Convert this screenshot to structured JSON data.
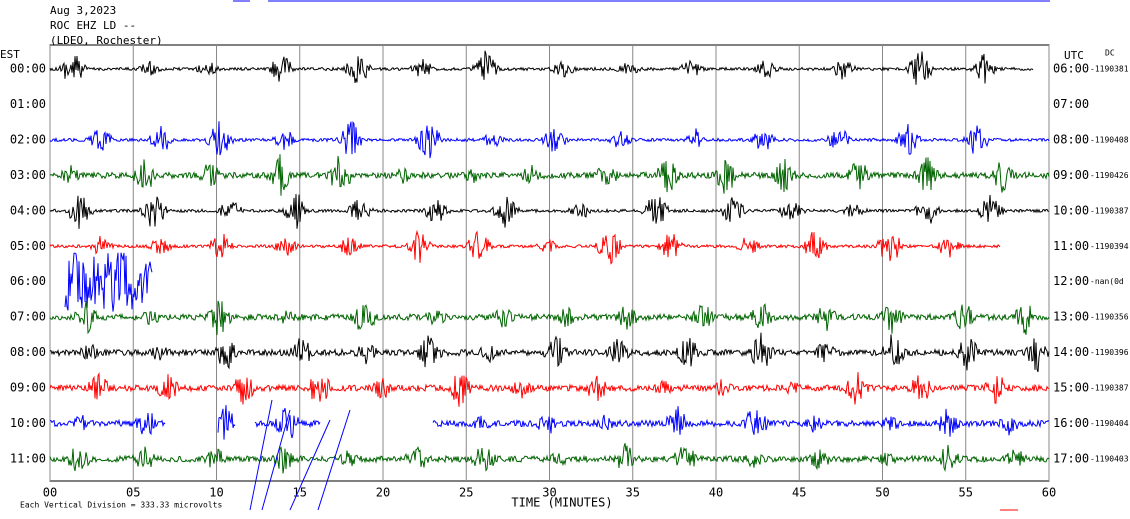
{
  "header": {
    "date": "Aug 3,2023",
    "station": "ROC EHZ LD --",
    "place": "(LDEO, Rochester)"
  },
  "left_zone": "EST",
  "right_zone": "UTC",
  "dc": "DC",
  "rows": [
    {
      "est": "00:00",
      "utc": "06:00",
      "offset": "-1190381",
      "color": "#000000"
    },
    {
      "est": "01:00",
      "utc": "07:00",
      "color": "#ff0000"
    },
    {
      "est": "02:00",
      "utc": "08:00",
      "offset": "-1190408",
      "color": "#0000ff"
    },
    {
      "est": "03:00",
      "utc": "09:00",
      "offset": "-1190426",
      "color": "#006400"
    },
    {
      "est": "04:00",
      "utc": "10:00",
      "offset": "-1190387",
      "color": "#000000"
    },
    {
      "est": "05:00",
      "utc": "11:00",
      "offset": "-1190394",
      "color": "#ff0000"
    },
    {
      "est": "06:00",
      "utc": "12:00",
      "offset": "-nan(0d",
      "color": "#0000ff"
    },
    {
      "est": "07:00",
      "utc": "13:00",
      "offset": "-1190356",
      "color": "#006400"
    },
    {
      "est": "08:00",
      "utc": "14:00",
      "offset": "-1190396",
      "color": "#000000"
    },
    {
      "est": "09:00",
      "utc": "15:00",
      "offset": "-1190387",
      "color": "#ff0000"
    },
    {
      "est": "10:00",
      "utc": "16:00",
      "offset": "-1190404",
      "color": "#0000ff"
    },
    {
      "est": "11:00",
      "utc": "17:00",
      "offset": "-1190403",
      "color": "#006400"
    }
  ],
  "x_axis": {
    "range": [
      0,
      60
    ],
    "label": "TIME (MINUTES)",
    "ticks": [
      {
        "value": 0,
        "label": "00"
      },
      {
        "value": 5,
        "label": "05"
      },
      10,
      15,
      20,
      25,
      30,
      35,
      40,
      45,
      50,
      55,
      60
    ]
  },
  "footer": "Each Vertical Division =  333.33 microvolts"
}
